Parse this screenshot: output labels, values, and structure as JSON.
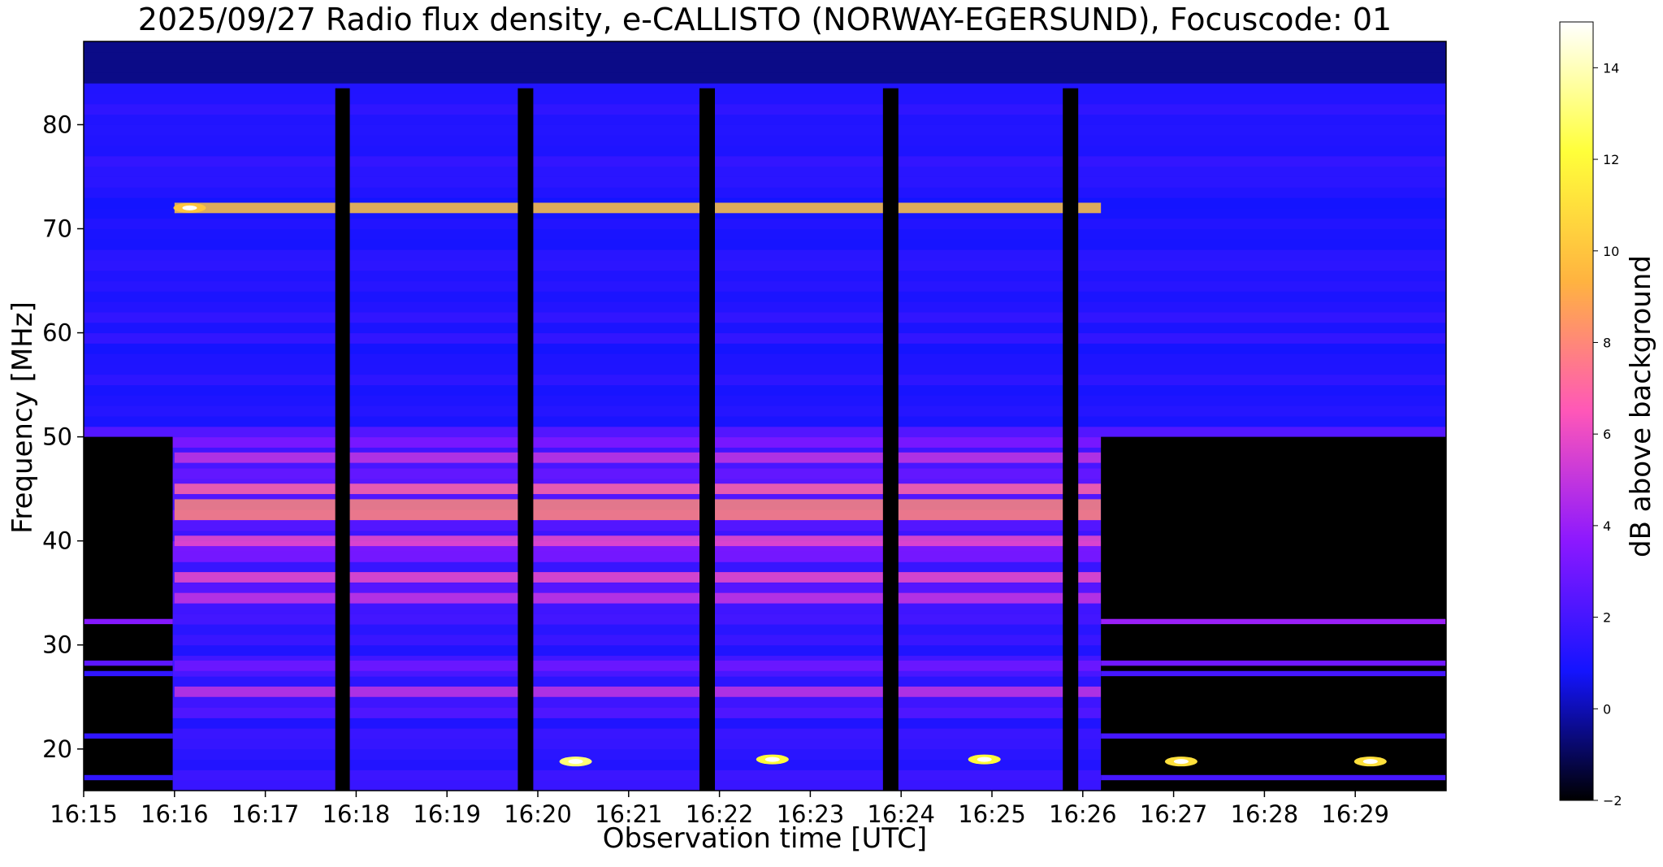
{
  "chart_data": {
    "type": "heatmap",
    "title": "2025/09/27  Radio flux density, e-CALLISTO (NORWAY-EGERSUND), Focuscode: 01",
    "xlabel": "Observation time [UTC]",
    "ylabel": "Frequency [MHz]",
    "colorbar_label": "dB above background",
    "x_ticks": [
      "16:15",
      "16:16",
      "16:17",
      "16:18",
      "16:19",
      "16:20",
      "16:21",
      "16:22",
      "16:23",
      "16:24",
      "16:25",
      "16:26",
      "16:27",
      "16:28",
      "16:29"
    ],
    "x_range": [
      "16:15:00",
      "16:30:00"
    ],
    "y_ticks": [
      20,
      30,
      40,
      50,
      60,
      70,
      80
    ],
    "y_range": [
      16,
      88
    ],
    "colorbar_ticks": [
      -2,
      0,
      2,
      4,
      6,
      8,
      10,
      12,
      14
    ],
    "colorbar_range": [
      -2,
      15
    ],
    "colormap": "gnuplot2",
    "colormap_stops": [
      "#000000",
      "#1414ff",
      "#8c18ff",
      "#ff57b8",
      "#ffb340",
      "#ffff3a",
      "#ffffff"
    ],
    "data_gaps_minutes": [
      [
        0.0,
        0.98
      ],
      [
        2.77,
        2.93
      ],
      [
        4.78,
        4.95
      ],
      [
        6.78,
        6.95
      ],
      [
        8.8,
        8.97
      ],
      [
        10.78,
        10.95
      ]
    ],
    "frequency_bands_dB": [
      {
        "mhz": [
          42,
          44
        ],
        "db": 8
      },
      {
        "mhz": [
          44.5,
          45.5
        ],
        "db": 7
      },
      {
        "mhz": [
          39.5,
          40.5
        ],
        "db": 6
      },
      {
        "mhz": [
          36,
          37
        ],
        "db": 6
      },
      {
        "mhz": [
          47.5,
          48.5
        ],
        "db": 5
      },
      {
        "mhz": [
          34,
          35
        ],
        "db": 5
      },
      {
        "mhz": [
          25,
          26
        ],
        "db": 5
      },
      {
        "mhz": [
          71.5,
          72.5
        ],
        "db": 10
      },
      {
        "mhz": [
          27.5,
          28.5
        ],
        "db": 3
      }
    ],
    "bursts": [
      {
        "time": "16:20:25",
        "mhz": 18.8,
        "db": 13
      },
      {
        "time": "16:22:35",
        "mhz": 19.0,
        "db": 12
      },
      {
        "time": "16:24:55",
        "mhz": 19.0,
        "db": 12
      },
      {
        "time": "16:27:05",
        "mhz": 18.8,
        "db": 11
      },
      {
        "time": "16:29:10",
        "mhz": 18.8,
        "db": 11
      },
      {
        "time": "16:16:10",
        "mhz": 72.0,
        "db": 10
      }
    ]
  }
}
